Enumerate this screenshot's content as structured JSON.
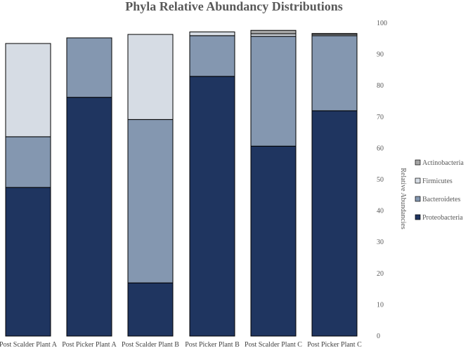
{
  "chart_data": {
    "type": "bar",
    "stacked": true,
    "title": "Phyla Relative Abundancy Distributions",
    "ylabel": "Relative Abundancies",
    "xlabel": "",
    "ylim": [
      0,
      100
    ],
    "yticks": [
      0,
      10,
      20,
      30,
      40,
      50,
      60,
      70,
      80,
      90,
      100
    ],
    "y_axis_side": "right",
    "grid": false,
    "legend_position": "right",
    "categories": [
      "Post Scalder Plant A",
      "Post Picker Plant A",
      "Post Scalder Plant B",
      "Post Picker Plant B",
      "Post Scalder Plant C",
      "Post Picker Plant C"
    ],
    "series": [
      {
        "name": "Proteobacteria",
        "color": "#1f3560",
        "values": [
          47.5,
          76.3,
          17.0,
          83.0,
          60.7,
          72.0
        ]
      },
      {
        "name": "Bacteroidetes",
        "color": "#8497b0",
        "values": [
          16.2,
          19.0,
          52.2,
          13.0,
          35.1,
          24.0
        ]
      },
      {
        "name": "Firmicutes",
        "color": "#d6dce4",
        "values": [
          29.8,
          0.0,
          27.2,
          1.2,
          0.8,
          0.4
        ]
      },
      {
        "name": "Actinobacteria",
        "color": "#a6a6a6",
        "values": [
          0.0,
          0.0,
          0.0,
          0.0,
          1.1,
          0.3
        ]
      }
    ]
  }
}
